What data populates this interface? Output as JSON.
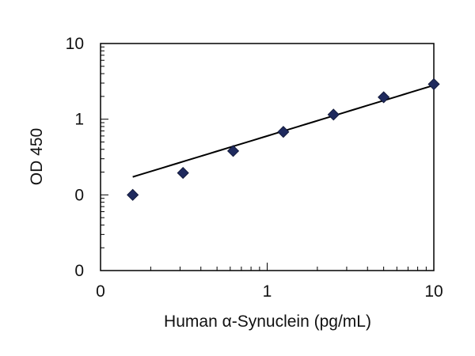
{
  "chart_data": {
    "type": "scatter",
    "title": "",
    "xlabel": "Human α-Synuclein (pg/mL)",
    "ylabel": "OD 450",
    "x_scale": "log",
    "y_scale": "log",
    "xlim": [
      0.1,
      10
    ],
    "ylim": [
      0.01,
      10
    ],
    "x_ticks": [
      {
        "value": 0.1,
        "label": "0"
      },
      {
        "value": 1,
        "label": "1"
      },
      {
        "value": 10,
        "label": "10"
      }
    ],
    "y_ticks": [
      {
        "value": 0.01,
        "label": "0"
      },
      {
        "value": 0.1,
        "label": "0"
      },
      {
        "value": 1,
        "label": "1"
      },
      {
        "value": 10,
        "label": "10"
      }
    ],
    "grid": false,
    "legend": "none",
    "series": [
      {
        "marker": "diamond",
        "color": "#1f2a5e",
        "x": [
          0.156,
          0.3125,
          0.625,
          1.25,
          2.5,
          5,
          10
        ],
        "y": [
          0.1,
          0.195,
          0.38,
          0.68,
          1.15,
          1.95,
          2.9
        ]
      }
    ],
    "fit_line": {
      "type": "power",
      "color": "#000000",
      "x_range": [
        0.156,
        10
      ],
      "a": 0.6,
      "b": 0.67
    }
  }
}
